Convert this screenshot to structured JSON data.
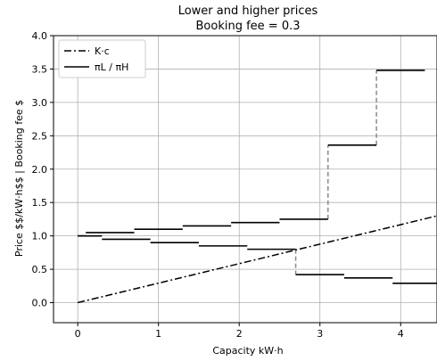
{
  "chart_data": {
    "type": "line",
    "title": "Lower and higher prices",
    "subtitle": "Booking fee = 0.3",
    "xlabel": "Capacity kW·h",
    "ylabel": "Price $$/kW·h$$ | Booking fee $",
    "xlim": [
      -0.3,
      4.45
    ],
    "ylim": [
      -0.3,
      4.0
    ],
    "xticks": [
      0,
      1,
      2,
      3,
      4
    ],
    "yticks": [
      0.0,
      0.5,
      1.0,
      1.5,
      2.0,
      2.5,
      3.0,
      3.5,
      4.0
    ],
    "xtick_labels": [
      "0",
      "1",
      "2",
      "3",
      "4"
    ],
    "ytick_labels": [
      "0.0",
      "0.5",
      "1.0",
      "1.5",
      "2.0",
      "2.5",
      "3.0",
      "3.5",
      "4.0"
    ],
    "grid": true,
    "legend_position": "top-left",
    "series": [
      {
        "name": "K·c",
        "style": "dash-dot",
        "color": "#000000",
        "x": [
          0,
          4.45
        ],
        "y": [
          0,
          1.3
        ]
      },
      {
        "name": "πL / πH",
        "style": "solid",
        "color": "#000000",
        "steps_high": [
          [
            0.0,
            0.1,
            1.0
          ],
          [
            0.1,
            0.7,
            1.05
          ],
          [
            0.7,
            1.3,
            1.1
          ],
          [
            1.3,
            1.9,
            1.15
          ],
          [
            1.9,
            2.5,
            1.2
          ],
          [
            2.5,
            3.1,
            1.25
          ],
          [
            3.1,
            3.7,
            2.36
          ],
          [
            3.7,
            4.3,
            3.48
          ]
        ],
        "steps_low": [
          [
            0.0,
            0.3,
            1.0
          ],
          [
            0.3,
            0.9,
            0.95
          ],
          [
            0.9,
            1.5,
            0.9
          ],
          [
            1.5,
            2.1,
            0.85
          ],
          [
            2.1,
            2.7,
            0.8
          ],
          [
            2.7,
            3.3,
            0.42
          ],
          [
            3.3,
            3.9,
            0.37
          ],
          [
            3.9,
            4.45,
            0.29
          ]
        ],
        "jump_color": "#8a8a8a",
        "jumps": [
          [
            3.1,
            1.25,
            2.36
          ],
          [
            3.7,
            2.36,
            3.48
          ],
          [
            2.7,
            0.8,
            0.42
          ]
        ]
      }
    ]
  }
}
